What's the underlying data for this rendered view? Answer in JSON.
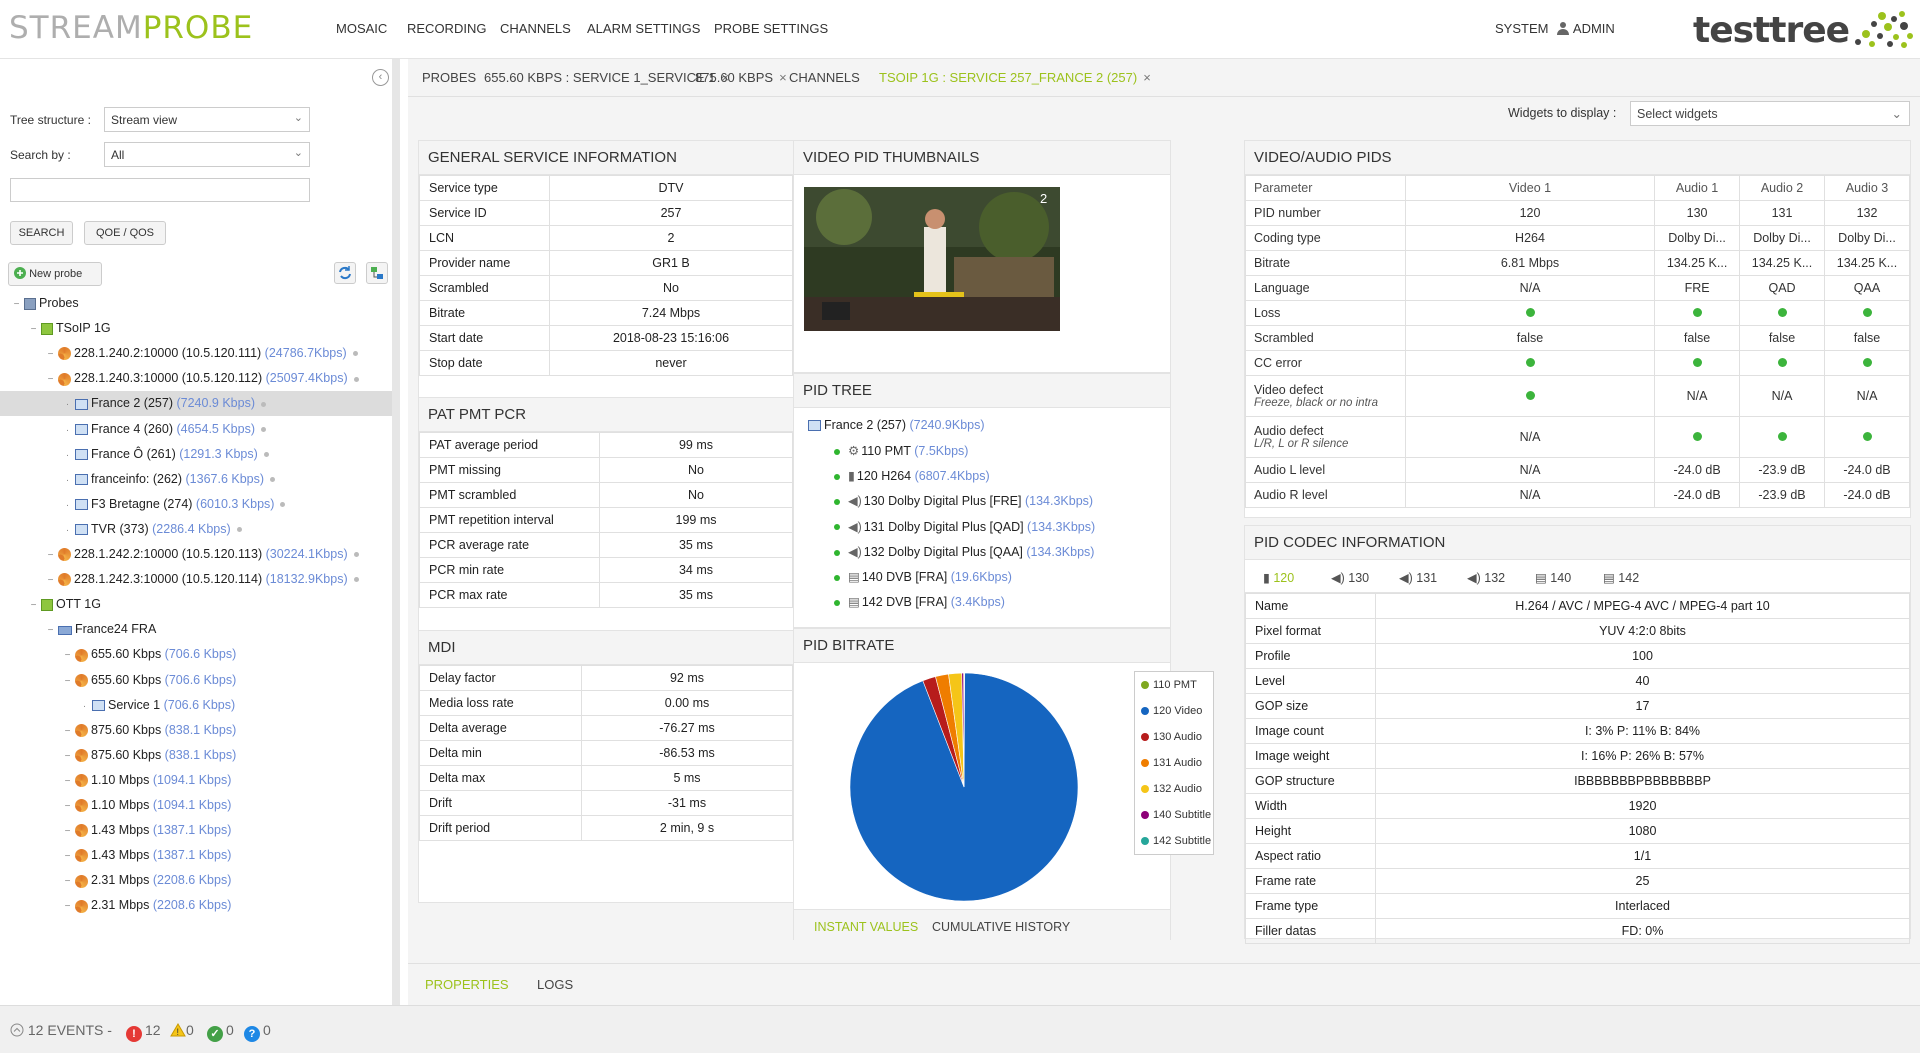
{
  "header": {
    "logo_left_a": "STREAM",
    "logo_left_b": "PROBE",
    "nav": [
      "MOSAIC",
      "RECORDING",
      "CHANNELS",
      "ALARM SETTINGS",
      "PROBE SETTINGS"
    ],
    "system": "SYSTEM",
    "admin": "ADMIN",
    "logo_right": "testtree",
    "brand_color": "#9cc21c"
  },
  "left": {
    "tree_structure_label": "Tree structure :",
    "tree_structure_value": "Stream view",
    "search_by_label": "Search by :",
    "search_by_value": "All",
    "search_button": "SEARCH",
    "qoe_button": "QOE / QOS",
    "new_probe": "New probe",
    "tree": [
      {
        "text": "Probes",
        "rate": "",
        "level": 0,
        "icon": "server-icon",
        "dot": false,
        "sel": false
      },
      {
        "text": "TSoIP 1G",
        "rate": "",
        "level": 1,
        "icon": "probe-icon",
        "dot": false,
        "sel": false
      },
      {
        "text": "228.1.240.2:10000 (10.5.120.111) ",
        "rate": "(24786.7Kbps)",
        "level": 2,
        "icon": "feed-icon",
        "dot": true,
        "sel": false
      },
      {
        "text": "228.1.240.3:10000 (10.5.120.112) ",
        "rate": "(25097.4Kbps)",
        "level": 2,
        "icon": "feed-icon",
        "dot": true,
        "sel": false
      },
      {
        "text": "France 2 (257) ",
        "rate": "(7240.9 Kbps)",
        "level": 3,
        "icon": "screen-icon",
        "dot": true,
        "sel": true
      },
      {
        "text": "France 4 (260) ",
        "rate": "(4654.5 Kbps)",
        "level": 3,
        "icon": "screen-icon",
        "dot": true,
        "sel": false
      },
      {
        "text": "France Ô (261) ",
        "rate": "(1291.3 Kbps)",
        "level": 3,
        "icon": "screen-icon",
        "dot": true,
        "sel": false
      },
      {
        "text": "franceinfo: (262) ",
        "rate": "(1367.6 Kbps)",
        "level": 3,
        "icon": "screen-icon",
        "dot": true,
        "sel": false
      },
      {
        "text": "F3 Bretagne (274) ",
        "rate": "(6010.3 Kbps)",
        "level": 3,
        "icon": "screen-icon",
        "dot": true,
        "sel": false
      },
      {
        "text": "TVR (373) ",
        "rate": "(2286.4 Kbps)",
        "level": 3,
        "icon": "screen-icon",
        "dot": true,
        "sel": false
      },
      {
        "text": "228.1.242.2:10000 (10.5.120.113) ",
        "rate": "(30224.1Kbps)",
        "level": 2,
        "icon": "feed-icon",
        "dot": true,
        "sel": false
      },
      {
        "text": "228.1.242.3:10000 (10.5.120.114) ",
        "rate": "(18132.9Kbps)",
        "level": 2,
        "icon": "feed-icon",
        "dot": true,
        "sel": false
      },
      {
        "text": "OTT 1G",
        "rate": "",
        "level": 1,
        "icon": "probe-icon",
        "dot": false,
        "sel": false
      },
      {
        "text": "France24 FRA",
        "rate": "",
        "level": 2,
        "icon": "box-icon",
        "dot": false,
        "sel": false
      },
      {
        "text": "655.60 Kbps ",
        "rate": "(706.6 Kbps)",
        "level": 3,
        "icon": "feed-icon",
        "dot": false,
        "sel": false
      },
      {
        "text": "655.60 Kbps ",
        "rate": "(706.6 Kbps)",
        "level": 3,
        "icon": "feed-icon",
        "dot": false,
        "sel": false
      },
      {
        "text": "Service 1 ",
        "rate": "(706.6 Kbps)",
        "level": 4,
        "icon": "screen-icon",
        "dot": false,
        "sel": false
      },
      {
        "text": "875.60 Kbps ",
        "rate": "(838.1 Kbps)",
        "level": 3,
        "icon": "feed-icon",
        "dot": false,
        "sel": false
      },
      {
        "text": "875.60 Kbps ",
        "rate": "(838.1 Kbps)",
        "level": 3,
        "icon": "feed-icon",
        "dot": false,
        "sel": false
      },
      {
        "text": "1.10 Mbps ",
        "rate": "(1094.1 Kbps)",
        "level": 3,
        "icon": "feed-icon",
        "dot": false,
        "sel": false
      },
      {
        "text": "1.10 Mbps ",
        "rate": "(1094.1 Kbps)",
        "level": 3,
        "icon": "feed-icon",
        "dot": false,
        "sel": false
      },
      {
        "text": "1.43 Mbps ",
        "rate": "(1387.1 Kbps)",
        "level": 3,
        "icon": "feed-icon",
        "dot": false,
        "sel": false
      },
      {
        "text": "1.43 Mbps ",
        "rate": "(1387.1 Kbps)",
        "level": 3,
        "icon": "feed-icon",
        "dot": false,
        "sel": false
      },
      {
        "text": "2.31 Mbps ",
        "rate": "(2208.6 Kbps)",
        "level": 3,
        "icon": "feed-icon",
        "dot": false,
        "sel": false
      },
      {
        "text": "2.31 Mbps ",
        "rate": "(2208.6 Kbps)",
        "level": 3,
        "icon": "feed-icon",
        "dot": false,
        "sel": false
      }
    ]
  },
  "tabs": [
    {
      "label": "PROBES",
      "close": false,
      "active": false
    },
    {
      "label": "655.60 KBPS : SERVICE 1_SERVICE 1",
      "close": true,
      "active": false
    },
    {
      "label": "875.60 KBPS",
      "close": true,
      "active": false
    },
    {
      "label": "CHANNELS",
      "close": false,
      "active": false
    },
    {
      "label": "TSOIP 1G : SERVICE 257_FRANCE 2 (257)",
      "close": true,
      "active": true
    }
  ],
  "widgets": {
    "label": "Widgets to display :",
    "placeholder": "Select widgets"
  },
  "general": {
    "title": "GENERAL SERVICE INFORMATION",
    "rows": [
      [
        "Service type",
        "DTV"
      ],
      [
        "Service ID",
        "257"
      ],
      [
        "LCN",
        "2"
      ],
      [
        "Provider name",
        "GR1 B"
      ],
      [
        "Scrambled",
        "No"
      ],
      [
        "Bitrate",
        "7.24 Mbps"
      ],
      [
        "Start date",
        "2018-08-23 15:16:06"
      ],
      [
        "Stop date",
        "never"
      ]
    ]
  },
  "patpmt": {
    "title": "PAT PMT PCR",
    "rows": [
      [
        "PAT average period",
        "99 ms"
      ],
      [
        "PMT missing",
        "No"
      ],
      [
        "PMT scrambled",
        "No"
      ],
      [
        "PMT repetition interval",
        "199 ms"
      ],
      [
        "PCR average rate",
        "35 ms"
      ],
      [
        "PCR min rate",
        "34 ms"
      ],
      [
        "PCR max rate",
        "35 ms"
      ]
    ]
  },
  "mdi": {
    "title": "MDI",
    "rows": [
      [
        "Delay factor",
        "92 ms"
      ],
      [
        "Media loss rate",
        "0.00 ms"
      ],
      [
        "Delta average",
        "-76.27 ms"
      ],
      [
        "Delta min",
        "-86.53 ms"
      ],
      [
        "Delta max",
        "5 ms"
      ],
      [
        "Drift",
        "-31 ms"
      ],
      [
        "Drift period",
        "2 min, 9 s"
      ]
    ]
  },
  "thumbs": {
    "title": "VIDEO PID THUMBNAILS",
    "overlay_number": "2"
  },
  "pidtree": {
    "title": "PID TREE",
    "root": "France 2 (257) ",
    "root_rate": "(7240.9Kbps)",
    "items": [
      {
        "text": "110 PMT ",
        "rate": "(7.5Kbps)",
        "icon": "gear-icon"
      },
      {
        "text": "120 H264 ",
        "rate": "(6807.4Kbps)",
        "icon": "camera-icon"
      },
      {
        "text": "130 Dolby Digital Plus [FRE] ",
        "rate": "(134.3Kbps)",
        "icon": "speaker-icon"
      },
      {
        "text": "131 Dolby Digital Plus [QAD] ",
        "rate": "(134.3Kbps)",
        "icon": "speaker-icon"
      },
      {
        "text": "132 Dolby Digital Plus [QAA] ",
        "rate": "(134.3Kbps)",
        "icon": "speaker-icon"
      },
      {
        "text": "140 DVB [FRA] ",
        "rate": "(19.6Kbps)",
        "icon": "document-icon"
      },
      {
        "text": "142 DVB [FRA] ",
        "rate": "(3.4Kbps)",
        "icon": "document-icon"
      }
    ]
  },
  "pidbitrate": {
    "title": "PID BITRATE",
    "tab_instant": "INSTANT VALUES",
    "tab_history": "CUMULATIVE HISTORY"
  },
  "chart_data": {
    "type": "pie",
    "categories": [
      "110 PMT",
      "120 Video",
      "130 Audio",
      "131 Audio",
      "132 Audio",
      "140 Subtitle",
      "142 Subtitle"
    ],
    "values": [
      7.5,
      6807.4,
      134.3,
      134.3,
      134.3,
      19.6,
      3.4
    ],
    "colors": [
      "#7fa820",
      "#1565c0",
      "#b71c1c",
      "#ef7d00",
      "#f5c518",
      "#8e0078",
      "#26a69a"
    ]
  },
  "avpids": {
    "title": "VIDEO/AUDIO PIDS",
    "headers": [
      "Parameter",
      "Video 1",
      "Audio 1",
      "Audio 2",
      "Audio 3"
    ],
    "rows": [
      {
        "p": "PID number",
        "s": "",
        "v": [
          "120",
          "130",
          "131",
          "132"
        ]
      },
      {
        "p": "Coding type",
        "s": "",
        "v": [
          "H264",
          "Dolby Di...",
          "Dolby Di...",
          "Dolby Di..."
        ]
      },
      {
        "p": "Bitrate",
        "s": "",
        "v": [
          "6.81 Mbps",
          "134.25 K...",
          "134.25 K...",
          "134.25 K..."
        ]
      },
      {
        "p": "Language",
        "s": "",
        "v": [
          "N/A",
          "FRE",
          "QAD",
          "QAA"
        ]
      },
      {
        "p": "Loss",
        "s": "",
        "v": [
          "•",
          "•",
          "•",
          "•"
        ]
      },
      {
        "p": "Scrambled",
        "s": "",
        "v": [
          "false",
          "false",
          "false",
          "false"
        ]
      },
      {
        "p": "CC error",
        "s": "",
        "v": [
          "•",
          "•",
          "•",
          "•"
        ]
      },
      {
        "p": "Video defect",
        "s": "Freeze, black or no intra",
        "v": [
          "•",
          "N/A",
          "N/A",
          "N/A"
        ]
      },
      {
        "p": "Audio defect",
        "s": "L/R, L or R silence",
        "v": [
          "N/A",
          "•",
          "•",
          "•"
        ]
      },
      {
        "p": "Audio L level",
        "s": "",
        "v": [
          "N/A",
          "-24.0 dB",
          "-23.9 dB",
          "-24.0 dB"
        ]
      },
      {
        "p": "Audio R level",
        "s": "",
        "v": [
          "N/A",
          "-24.0 dB",
          "-23.9 dB",
          "-24.0 dB"
        ]
      }
    ]
  },
  "codec": {
    "title": "PID CODEC INFORMATION",
    "tabs": [
      {
        "label": "120",
        "icon": "camera-icon",
        "active": true
      },
      {
        "label": "130",
        "icon": "speaker-icon",
        "active": false
      },
      {
        "label": "131",
        "icon": "speaker-icon",
        "active": false
      },
      {
        "label": "132",
        "icon": "speaker-icon",
        "active": false
      },
      {
        "label": "140",
        "icon": "document-icon",
        "active": false
      },
      {
        "label": "142",
        "icon": "document-icon",
        "active": false
      }
    ],
    "rows": [
      [
        "Name",
        "H.264 / AVC / MPEG-4 AVC / MPEG-4 part 10"
      ],
      [
        "Pixel format",
        "YUV 4:2:0 8bits"
      ],
      [
        "Profile",
        "100"
      ],
      [
        "Level",
        "40"
      ],
      [
        "GOP size",
        "17"
      ],
      [
        "Image count",
        "I: 3% P: 11% B: 84%"
      ],
      [
        "Image weight",
        "I: 16% P: 26% B: 57%"
      ],
      [
        "GOP structure",
        "IBBBBBBBPBBBBBBBP"
      ],
      [
        "Width",
        "1920"
      ],
      [
        "Height",
        "1080"
      ],
      [
        "Aspect ratio",
        "1/1"
      ],
      [
        "Frame rate",
        "25"
      ],
      [
        "Frame type",
        "Interlaced"
      ],
      [
        "Filler datas",
        "FD: 0%"
      ]
    ]
  },
  "bottom_tabs": {
    "properties": "PROPERTIES",
    "logs": "LOGS"
  },
  "status": {
    "events": "12 EVENTS -",
    "errors": "12",
    "warnings": "0",
    "ok": "0",
    "info": "0"
  }
}
